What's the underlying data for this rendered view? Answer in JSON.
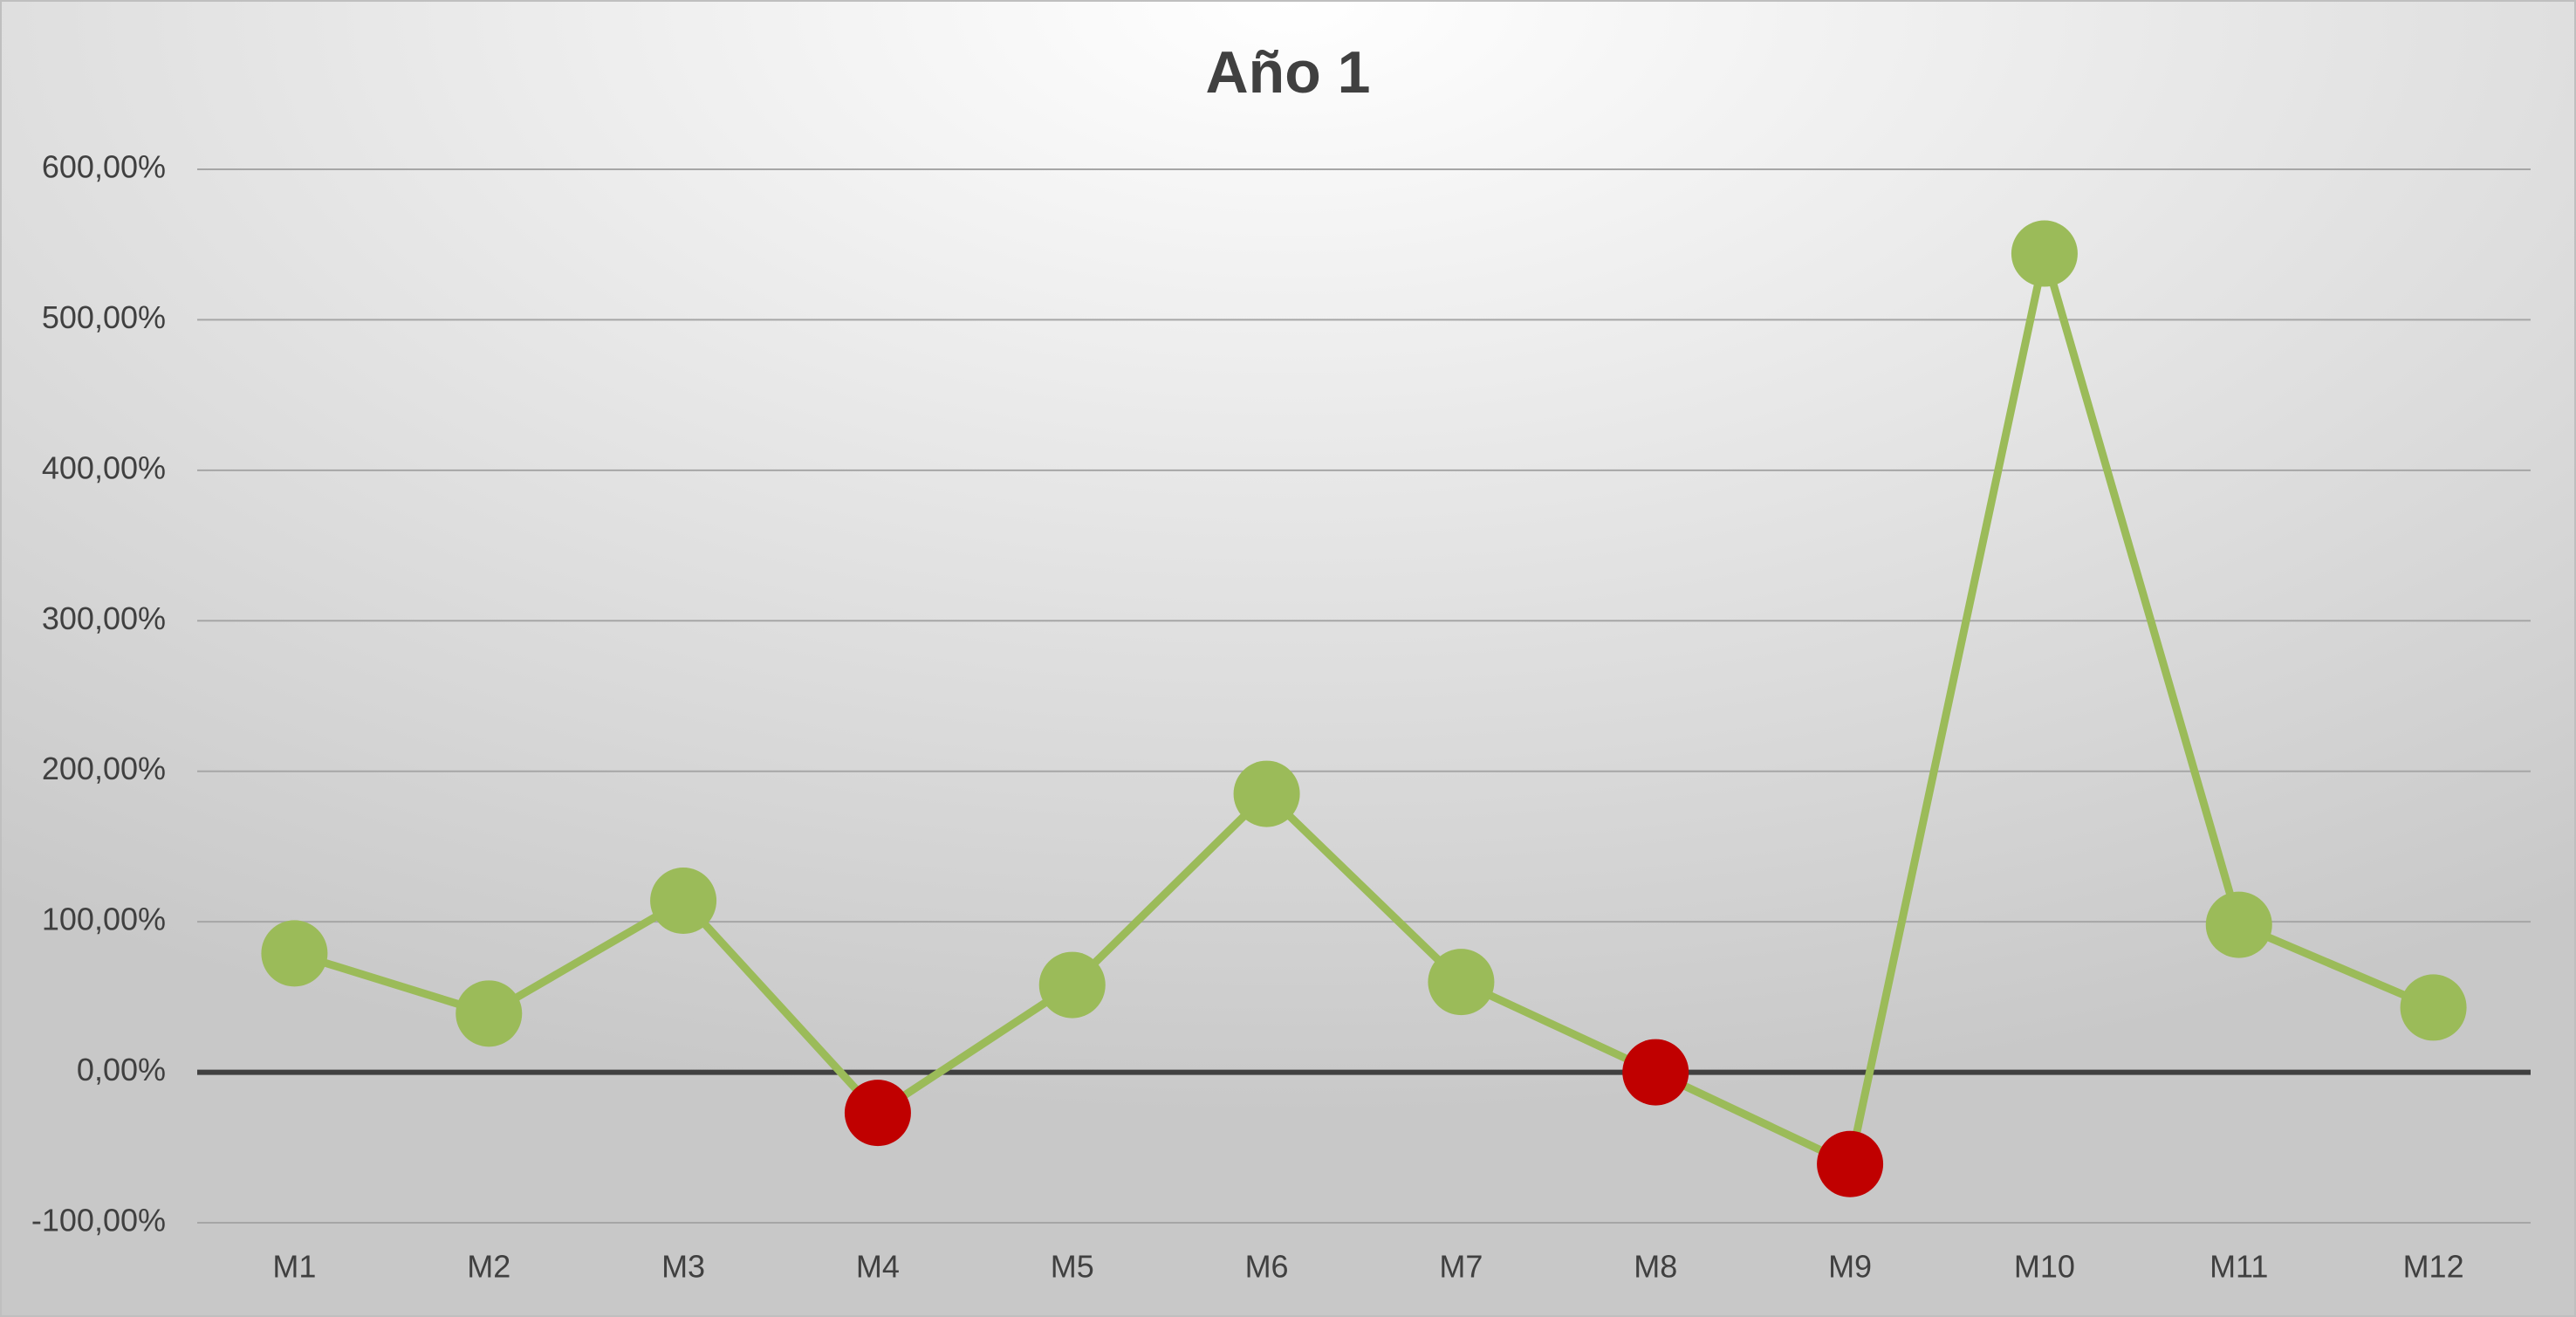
{
  "chart_data": {
    "type": "line",
    "title": "Año 1",
    "categories": [
      "M1",
      "M2",
      "M3",
      "M4",
      "M5",
      "M6",
      "M7",
      "M8",
      "M9",
      "M10",
      "M11",
      "M12"
    ],
    "series": [
      {
        "name": "Año 1",
        "color": "#9bbb59",
        "values": [
          79,
          39,
          114,
          -27,
          58,
          185,
          60,
          0,
          -61,
          544,
          98,
          43
        ],
        "marker_colors": [
          "#9bbb59",
          "#9bbb59",
          "#9bbb59",
          "#c00000",
          "#9bbb59",
          "#9bbb59",
          "#9bbb59",
          "#c00000",
          "#c00000",
          "#9bbb59",
          "#9bbb59",
          "#9bbb59"
        ]
      }
    ],
    "ylim": [
      -100,
      600
    ],
    "yticks": [
      {
        "value": -100,
        "label": "-100,00%"
      },
      {
        "value": 0,
        "label": "0,00%"
      },
      {
        "value": 100,
        "label": "100,00%"
      },
      {
        "value": 200,
        "label": "200,00%"
      },
      {
        "value": 300,
        "label": "300,00%"
      },
      {
        "value": 400,
        "label": "400,00%"
      },
      {
        "value": 500,
        "label": "500,00%"
      },
      {
        "value": 600,
        "label": "600,00%"
      }
    ],
    "grid": true,
    "legend": false
  }
}
